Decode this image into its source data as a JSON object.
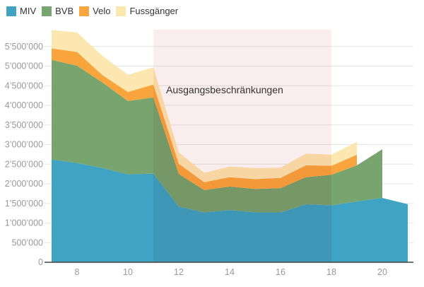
{
  "chart_data": {
    "type": "area",
    "stacked": true,
    "x": [
      7,
      8,
      9,
      10,
      11,
      12,
      13,
      14,
      15,
      16,
      17,
      18,
      19,
      20,
      21
    ],
    "series": [
      {
        "name": "MIV",
        "color": "#3fa3c4",
        "values": [
          2620000,
          2530000,
          2400000,
          2240000,
          2260000,
          1420000,
          1270000,
          1330000,
          1270000,
          1270000,
          1480000,
          1450000,
          1550000,
          1640000,
          1480000
        ]
      },
      {
        "name": "BVB",
        "color": "#78a46e",
        "values": [
          2540000,
          2480000,
          2180000,
          1870000,
          1940000,
          830000,
          570000,
          600000,
          600000,
          620000,
          690000,
          780000,
          920000,
          1240000,
          null
        ]
      },
      {
        "name": "Velo",
        "color": "#f9a53d",
        "values": [
          290000,
          350000,
          190000,
          230000,
          330000,
          260000,
          200000,
          240000,
          250000,
          260000,
          300000,
          230000,
          270000,
          null,
          null
        ]
      },
      {
        "name": "Fussgänger",
        "color": "#fde7b0",
        "values": [
          470000,
          500000,
          490000,
          440000,
          440000,
          290000,
          240000,
          270000,
          280000,
          260000,
          300000,
          280000,
          330000,
          null,
          null
        ]
      }
    ],
    "xlim": [
      7,
      21
    ],
    "ylim": [
      0,
      6000000
    ],
    "xticks": [
      "8",
      "10",
      "12",
      "14",
      "16",
      "18",
      "20"
    ],
    "xtick_values": [
      8,
      10,
      12,
      14,
      16,
      18,
      20
    ],
    "yticks": [
      "0",
      "500’000",
      "1’000’000",
      "1’500’000",
      "2’000’000",
      "2’500’000",
      "3’000’000",
      "3’500’000",
      "4’000’000",
      "4’500’000",
      "5’000’000",
      "5’500’000"
    ],
    "ytick_values": [
      0,
      500000,
      1000000,
      1500000,
      2000000,
      2500000,
      3000000,
      3500000,
      4000000,
      4500000,
      5000000,
      5500000
    ],
    "grid": true,
    "legend_position": "top-left",
    "annotation": {
      "label": "Ausgangsbeschränkungen",
      "x_start": 11,
      "x_end": 18,
      "color": "#f7e1e1"
    }
  }
}
